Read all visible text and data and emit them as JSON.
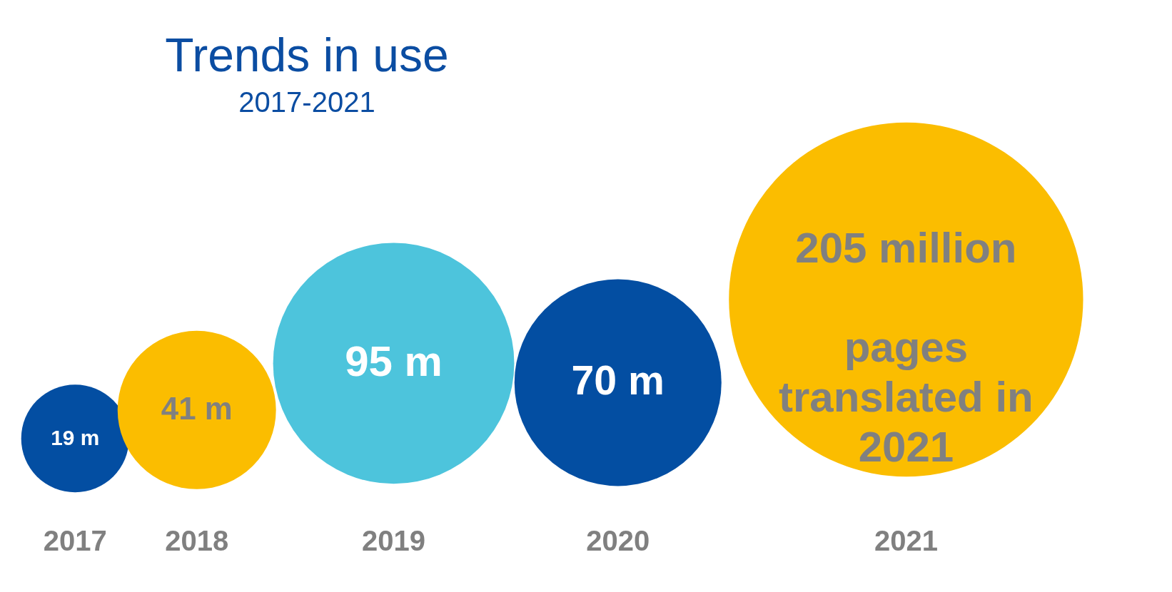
{
  "chart_data": {
    "type": "other",
    "title": "Trends in use",
    "subtitle": "2017-2021",
    "categories": [
      "2017",
      "2018",
      "2019",
      "2020",
      "2021"
    ],
    "values": [
      19,
      41,
      95,
      70,
      205
    ],
    "colors": [
      "#034ea2",
      "#fbbd00",
      "#4dc4dc",
      "#034ea2",
      "#fbbd00"
    ],
    "value_labels": [
      "19 m",
      "41 m",
      "95 m",
      "70 m",
      "205 million"
    ],
    "annotations": [
      "pages translated in 2021"
    ]
  }
}
